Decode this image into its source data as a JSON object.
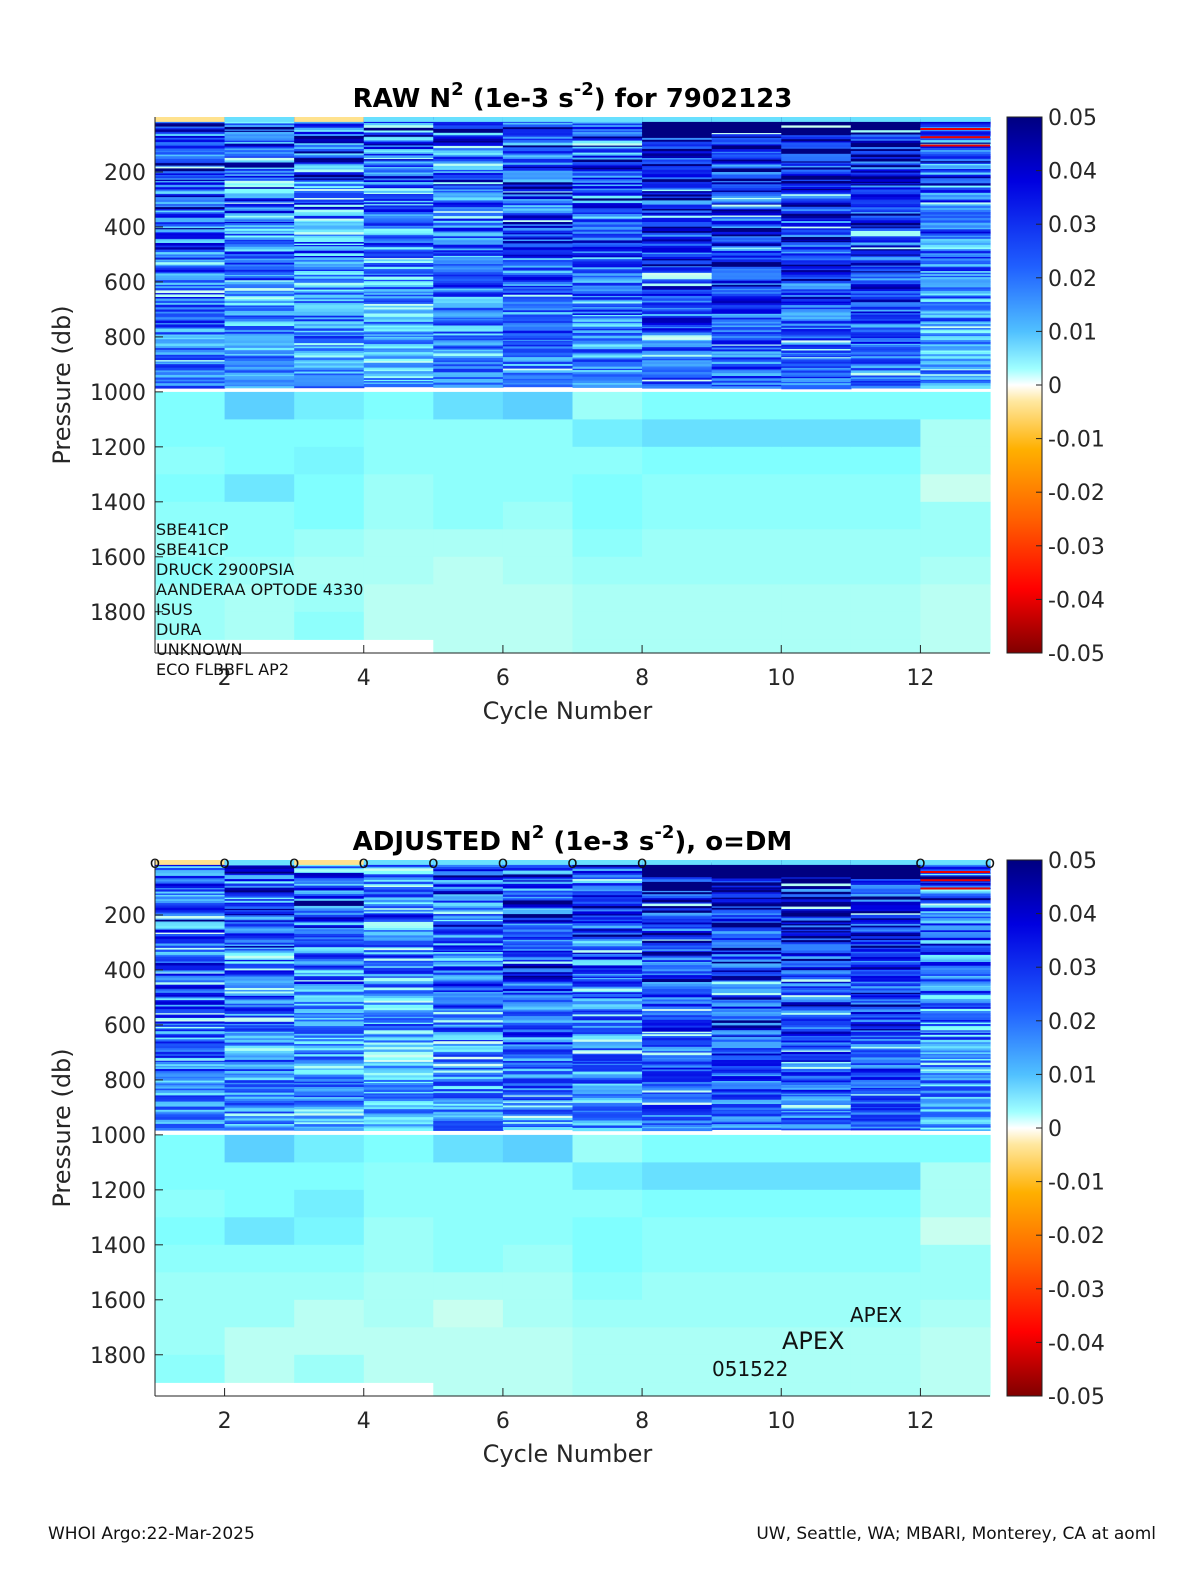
{
  "chart_data": [
    {
      "type": "heatmap",
      "title_parts": [
        "RAW N",
        "2",
        " (1e-3 s",
        "-2",
        ") for 7902123"
      ],
      "xlabel": "Cycle Number",
      "ylabel": "Pressure (db)",
      "xlim": [
        1,
        13
      ],
      "ylim": [
        1950,
        0
      ],
      "xticks": [
        2,
        4,
        6,
        8,
        10,
        12
      ],
      "yticks": [
        200,
        400,
        600,
        800,
        1000,
        1200,
        1400,
        1600,
        1800
      ],
      "colorbar": {
        "ticks": [
          0.05,
          0.04,
          0.03,
          0.02,
          0.01,
          0,
          -0.01,
          -0.02,
          -0.03,
          -0.04,
          -0.05
        ],
        "tick_labels": [
          "0.05",
          "0.04",
          "0.03",
          "0.02",
          "0.01",
          "0",
          "-0.01",
          "-0.02",
          "-0.03",
          "-0.04",
          "-0.05"
        ],
        "range": [
          -0.05,
          0.05
        ],
        "colormap": "jet-like with white at 0"
      },
      "cycles": [
        1,
        2,
        3,
        4,
        5,
        6,
        7,
        8,
        9,
        10,
        11,
        12
      ],
      "cycle_max_pressure": [
        1900,
        1900,
        1900,
        1900,
        1950,
        1950,
        1950,
        1950,
        1950,
        1950,
        1950,
        1950
      ],
      "upper_layer_mean_n2": [
        0.036,
        0.03,
        0.032,
        0.028,
        0.034,
        0.036,
        0.034,
        0.042,
        0.042,
        0.042,
        0.042,
        0.03
      ],
      "deep_bins_db": [
        1000,
        1100,
        1200,
        1300,
        1400,
        1500,
        1600,
        1700,
        1800,
        1900
      ],
      "deep_n2": [
        [
          0.008,
          0.008,
          0.007,
          0.008,
          0.007,
          0.006,
          0.007,
          0.006,
          0.006,
          0.006
        ],
        [
          0.014,
          0.008,
          0.008,
          0.011,
          0.007,
          0.007,
          0.006,
          0.005,
          0.005,
          0.005
        ],
        [
          0.01,
          0.008,
          0.009,
          0.008,
          0.008,
          0.006,
          0.005,
          0.006,
          0.007,
          0.005
        ],
        [
          0.008,
          0.007,
          0.007,
          0.006,
          0.006,
          0.005,
          0.005,
          0.004,
          0.004,
          0.004
        ],
        [
          0.012,
          0.007,
          0.007,
          0.007,
          0.007,
          0.005,
          0.004,
          0.004,
          0.004,
          0.004
        ],
        [
          0.014,
          0.007,
          0.007,
          0.007,
          0.006,
          0.005,
          0.005,
          0.004,
          0.004,
          0.004
        ],
        [
          0.006,
          0.01,
          0.007,
          0.008,
          0.008,
          0.007,
          0.006,
          0.005,
          0.005,
          0.005
        ],
        [
          0.008,
          0.012,
          0.008,
          0.007,
          0.007,
          0.006,
          0.006,
          0.005,
          0.005,
          0.005
        ],
        [
          0.008,
          0.012,
          0.008,
          0.007,
          0.007,
          0.006,
          0.006,
          0.005,
          0.005,
          0.005
        ],
        [
          0.008,
          0.012,
          0.008,
          0.007,
          0.007,
          0.006,
          0.006,
          0.005,
          0.005,
          0.005
        ],
        [
          0.008,
          0.012,
          0.008,
          0.007,
          0.007,
          0.006,
          0.006,
          0.005,
          0.005,
          0.005
        ],
        [
          0.008,
          0.005,
          0.005,
          0.003,
          0.006,
          0.006,
          0.005,
          0.004,
          0.004,
          0.004
        ]
      ],
      "annotations": [
        "SBE41CP",
        "SBE41CP",
        "DRUCK 2900PSIA",
        "AANDERAA OPTODE 4330",
        "ISUS",
        "DURA",
        "UNKNOWN",
        "ECO FLBBFL AP2"
      ]
    },
    {
      "type": "heatmap",
      "title_parts": [
        "ADJUSTED N",
        "2",
        " (1e-3 s",
        "-2",
        "), o=DM"
      ],
      "xlabel": "Cycle Number",
      "ylabel": "Pressure (db)",
      "xlim": [
        1,
        13
      ],
      "ylim": [
        1950,
        0
      ],
      "xticks": [
        2,
        4,
        6,
        8,
        10,
        12
      ],
      "yticks": [
        200,
        400,
        600,
        800,
        1000,
        1200,
        1400,
        1600,
        1800
      ],
      "colorbar": {
        "ticks": [
          0.05,
          0.04,
          0.03,
          0.02,
          0.01,
          0,
          -0.01,
          -0.02,
          -0.03,
          -0.04,
          -0.05
        ],
        "tick_labels": [
          "0.05",
          "0.04",
          "0.03",
          "0.02",
          "0.01",
          "0",
          "-0.01",
          "-0.02",
          "-0.03",
          "-0.04",
          "-0.05"
        ],
        "range": [
          -0.05,
          0.05
        ],
        "colormap": "jet-like with white at 0"
      },
      "cycles": [
        1,
        2,
        3,
        4,
        5,
        6,
        7,
        8,
        9,
        10,
        11,
        12
      ],
      "cycle_max_pressure": [
        1900,
        1900,
        1900,
        1900,
        1950,
        1950,
        1950,
        1950,
        1950,
        1950,
        1950,
        1950
      ],
      "upper_layer_mean_n2": [
        0.034,
        0.032,
        0.032,
        0.026,
        0.032,
        0.036,
        0.034,
        0.042,
        0.042,
        0.042,
        0.042,
        0.03
      ],
      "deep_bins_db": [
        1000,
        1100,
        1200,
        1300,
        1400,
        1500,
        1600,
        1700,
        1800,
        1900
      ],
      "deep_n2": [
        [
          0.008,
          0.008,
          0.007,
          0.008,
          0.007,
          0.006,
          0.006,
          0.006,
          0.007,
          0.0
        ],
        [
          0.014,
          0.008,
          0.008,
          0.011,
          0.007,
          0.006,
          0.006,
          0.004,
          0.004,
          0.0
        ],
        [
          0.01,
          0.008,
          0.01,
          0.009,
          0.007,
          0.006,
          0.004,
          0.004,
          0.006,
          0.0
        ],
        [
          0.008,
          0.007,
          0.007,
          0.006,
          0.006,
          0.005,
          0.005,
          0.004,
          0.004,
          0.0
        ],
        [
          0.012,
          0.007,
          0.007,
          0.007,
          0.007,
          0.005,
          0.003,
          0.004,
          0.004,
          0.004
        ],
        [
          0.014,
          0.007,
          0.007,
          0.007,
          0.006,
          0.005,
          0.005,
          0.004,
          0.004,
          0.004
        ],
        [
          0.006,
          0.01,
          0.007,
          0.008,
          0.008,
          0.007,
          0.006,
          0.005,
          0.005,
          0.005
        ],
        [
          0.008,
          0.012,
          0.008,
          0.007,
          0.007,
          0.006,
          0.006,
          0.005,
          0.005,
          0.005
        ],
        [
          0.008,
          0.012,
          0.008,
          0.007,
          0.007,
          0.006,
          0.006,
          0.005,
          0.005,
          0.005
        ],
        [
          0.008,
          0.012,
          0.008,
          0.007,
          0.007,
          0.006,
          0.006,
          0.005,
          0.005,
          0.005
        ],
        [
          0.008,
          0.012,
          0.008,
          0.007,
          0.007,
          0.006,
          0.006,
          0.005,
          0.005,
          0.005
        ],
        [
          0.008,
          0.005,
          0.005,
          0.003,
          0.006,
          0.006,
          0.005,
          0.004,
          0.004,
          0.004
        ]
      ],
      "dm_markers": {
        "label": "o",
        "x": [
          1,
          2,
          3,
          4,
          5,
          6,
          7,
          8,
          12,
          13
        ]
      },
      "annotations": [
        "APEX",
        "APEX",
        "051522"
      ]
    }
  ],
  "footer": {
    "left": "WHOI Argo:22-Mar-2025",
    "right": "UW, Seattle, WA; MBARI, Monterey, CA at aoml"
  }
}
